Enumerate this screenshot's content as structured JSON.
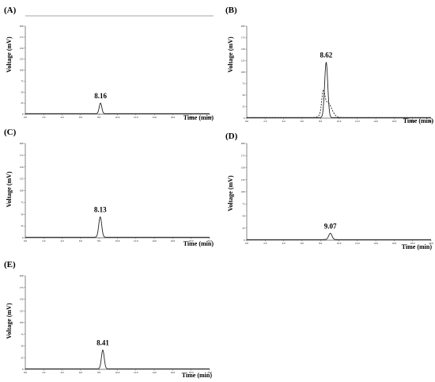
{
  "figure": {
    "panels": [
      {
        "label": "(A)",
        "chart_data": {
          "type": "line",
          "xlabel": "Time (min)",
          "ylabel": "Voltage (mV)",
          "xlim": [
            0,
            20
          ],
          "ylim": [
            0,
            200
          ],
          "x_ticks": [
            "0.0",
            "2.0",
            "4.0",
            "6.0",
            "8.0",
            "10.0",
            "12.0",
            "14.0",
            "16.0",
            "18.0",
            "20.0"
          ],
          "y_ticks": [
            "0",
            "25",
            "50",
            "75",
            "100",
            "125",
            "150",
            "175",
            "200"
          ],
          "series": [
            {
              "peak_time": 8.16,
              "peak_height": 24,
              "width": 0.14,
              "style": "solid",
              "color": "#222222"
            }
          ],
          "annotations": [
            {
              "text": "8.16",
              "x": 8.16
            }
          ],
          "top_line": true
        }
      },
      {
        "label": "(B)",
        "chart_data": {
          "type": "line",
          "xlabel": "Time (min)",
          "ylabel": "Voltage (mV)",
          "xlim": [
            0,
            20
          ],
          "ylim": [
            0,
            200
          ],
          "x_ticks": [
            "0.0",
            "2.0",
            "4.0",
            "6.0",
            "8.0",
            "10.0",
            "12.0",
            "14.0",
            "16.0",
            "18.0",
            "20.0"
          ],
          "y_ticks": [
            "0",
            "25",
            "50",
            "75",
            "100",
            "125",
            "150",
            "175",
            "200"
          ],
          "series": [
            {
              "peak_time": 8.62,
              "peak_height": 120,
              "width": 0.17,
              "style": "solid",
              "color": "#222222"
            },
            {
              "peak_time": 8.3,
              "peak_height": 40,
              "width": 0.16,
              "tail_time": 8.75,
              "tail_height": 33,
              "tail_width": 0.45,
              "style": "dashed",
              "color": "#222222"
            }
          ],
          "annotations": [
            {
              "text": "8.62",
              "x": 8.62
            }
          ],
          "top_line": false
        }
      },
      {
        "label": "(C)",
        "chart_data": {
          "type": "line",
          "xlabel": "Time (min)",
          "ylabel": "Voltage (mV)",
          "xlim": [
            0,
            20
          ],
          "ylim": [
            0,
            200
          ],
          "x_ticks": [
            "0.0",
            "2.0",
            "4.0",
            "6.0",
            "8.0",
            "10.0",
            "12.0",
            "14.0",
            "16.0",
            "18.0",
            "20.0"
          ],
          "y_ticks": [
            "0",
            "25",
            "50",
            "75",
            "100",
            "125",
            "150",
            "175",
            "200"
          ],
          "series": [
            {
              "peak_time": 8.13,
              "peak_height": 43,
              "width": 0.16,
              "style": "solid",
              "color": "#222222"
            }
          ],
          "annotations": [
            {
              "text": "8.13",
              "x": 8.13
            }
          ],
          "top_line": false
        }
      },
      {
        "label": "(D)",
        "chart_data": {
          "type": "line",
          "xlabel": "Time (min)",
          "ylabel": "Voltage (mV)",
          "xlim": [
            0,
            20
          ],
          "ylim": [
            0,
            200
          ],
          "x_ticks": [
            "0.0",
            "2.0",
            "4.0",
            "6.0",
            "8.0",
            "10.0",
            "12.0",
            "14.0",
            "16.0",
            "18.0",
            "20.0"
          ],
          "y_ticks": [
            "0",
            "25",
            "50",
            "75",
            "100",
            "125",
            "150",
            "175",
            "200"
          ],
          "series": [
            {
              "peak_time": 9.07,
              "peak_height": 13,
              "width": 0.18,
              "style": "solid",
              "color": "#222222"
            }
          ],
          "annotations": [
            {
              "text": "9.07",
              "x": 9.07
            }
          ],
          "top_line": false
        }
      },
      {
        "label": "(E)",
        "chart_data": {
          "type": "line",
          "xlabel": "Time (min)",
          "ylabel": "Voltage (mV)",
          "xlim": [
            0,
            20
          ],
          "ylim": [
            0,
            200
          ],
          "x_ticks": [
            "0.0",
            "2.0",
            "4.0",
            "6.0",
            "8.0",
            "10.0",
            "12.0",
            "14.0",
            "16.0",
            "18.0",
            "20.0"
          ],
          "y_ticks": [
            "0",
            "25",
            "50",
            "75",
            "100",
            "125",
            "150",
            "175",
            "200"
          ],
          "series": [
            {
              "peak_time": 8.41,
              "peak_height": 40,
              "width": 0.15,
              "style": "solid",
              "color": "#222222"
            }
          ],
          "annotations": [
            {
              "text": "8.41",
              "x": 8.41
            }
          ],
          "top_line": false
        }
      }
    ]
  }
}
